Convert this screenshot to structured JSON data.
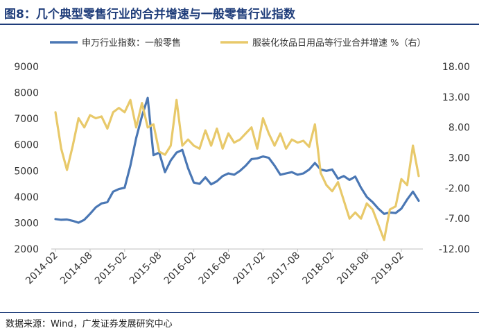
{
  "title": "图8：几个典型零售行业的合并增速与一般零售行业指数",
  "source": "数据来源：Wind，广发证券发展研究中心",
  "colors": {
    "title": "#1f3d7a",
    "series_blue": "#4a77b4",
    "series_yellow": "#e8c96a"
  },
  "chart_data": {
    "type": "line",
    "legend_position": "top",
    "grid": false,
    "x_ticks": [
      "2014-02",
      "2014-08",
      "2015-02",
      "2015-08",
      "2016-02",
      "2016-08",
      "2017-02",
      "2017-08",
      "2018-02",
      "2018-08",
      "2019-02"
    ],
    "x_range": [
      "2014-02",
      "2019-05"
    ],
    "y_left": {
      "min": 2000,
      "max": 9000,
      "ticks": [
        "2000",
        "3000",
        "4000",
        "5000",
        "6000",
        "7000",
        "8000",
        "9000"
      ]
    },
    "y_right": {
      "min": -12,
      "max": 18,
      "ticks": [
        "-12.00",
        "-7.00",
        "-2.00",
        "3.00",
        "8.00",
        "13.00",
        "18.00"
      ]
    },
    "series": [
      {
        "name": "申万行业指数：一般零售",
        "axis": "left",
        "color": "#4a77b4",
        "x": [
          "2014-02",
          "2014-03",
          "2014-04",
          "2014-05",
          "2014-06",
          "2014-07",
          "2014-08",
          "2014-09",
          "2014-10",
          "2014-11",
          "2014-12",
          "2015-01",
          "2015-02",
          "2015-03",
          "2015-04",
          "2015-05",
          "2015-06",
          "2015-07",
          "2015-08",
          "2015-09",
          "2015-10",
          "2015-11",
          "2015-12",
          "2016-01",
          "2016-02",
          "2016-03",
          "2016-04",
          "2016-05",
          "2016-06",
          "2016-07",
          "2016-08",
          "2016-09",
          "2016-10",
          "2016-11",
          "2016-12",
          "2017-01",
          "2017-02",
          "2017-03",
          "2017-04",
          "2017-05",
          "2017-06",
          "2017-07",
          "2017-08",
          "2017-09",
          "2017-10",
          "2017-11",
          "2017-12",
          "2018-01",
          "2018-02",
          "2018-03",
          "2018-04",
          "2018-05",
          "2018-06",
          "2018-07",
          "2018-08",
          "2018-09",
          "2018-10",
          "2018-11",
          "2018-12",
          "2019-01",
          "2019-02",
          "2019-03",
          "2019-04",
          "2019-05"
        ],
        "values": [
          3150,
          3120,
          3130,
          3080,
          3010,
          3120,
          3350,
          3600,
          3750,
          3800,
          4200,
          4300,
          4350,
          5200,
          6250,
          7100,
          7800,
          5600,
          5700,
          4950,
          5400,
          5700,
          5800,
          5100,
          4550,
          4500,
          4750,
          4480,
          4600,
          4800,
          4900,
          4850,
          5000,
          5200,
          5450,
          5480,
          5550,
          5500,
          5200,
          4850,
          4900,
          4950,
          4850,
          4900,
          5050,
          5300,
          5050,
          5000,
          5050,
          4700,
          4800,
          4650,
          4780,
          4350,
          4000,
          3800,
          3550,
          3350,
          3400,
          3380,
          3550,
          3900,
          4200,
          3850
        ]
      },
      {
        "name": "服装化妆品日用品等行业合并增速 %（右）",
        "axis": "right",
        "color": "#e8c96a",
        "x": [
          "2014-02",
          "2014-03",
          "2014-04",
          "2014-05",
          "2014-06",
          "2014-07",
          "2014-08",
          "2014-09",
          "2014-10",
          "2014-11",
          "2014-12",
          "2015-01",
          "2015-02",
          "2015-03",
          "2015-04",
          "2015-05",
          "2015-06",
          "2015-07",
          "2015-08",
          "2015-09",
          "2015-10",
          "2015-11",
          "2015-12",
          "2016-01",
          "2016-02",
          "2016-03",
          "2016-04",
          "2016-05",
          "2016-06",
          "2016-07",
          "2016-08",
          "2016-09",
          "2016-10",
          "2016-11",
          "2016-12",
          "2017-01",
          "2017-02",
          "2017-03",
          "2017-04",
          "2017-05",
          "2017-06",
          "2017-07",
          "2017-08",
          "2017-09",
          "2017-10",
          "2017-11",
          "2017-12",
          "2018-01",
          "2018-02",
          "2018-03",
          "2018-04",
          "2018-05",
          "2018-06",
          "2018-07",
          "2018-08",
          "2018-09",
          "2018-10",
          "2018-11",
          "2018-12",
          "2019-01",
          "2019-02",
          "2019-03",
          "2019-04",
          "2019-05"
        ],
        "values": [
          10.5,
          4.5,
          1.0,
          5.0,
          9.5,
          8.0,
          10.0,
          9.5,
          9.8,
          7.8,
          10.5,
          11.2,
          10.5,
          12.5,
          8.0,
          12.0,
          8.0,
          8.5,
          4.0,
          3.5,
          5.0,
          12.5,
          5.0,
          6.0,
          5.0,
          4.5,
          7.5,
          5.0,
          7.8,
          4.5,
          7.0,
          5.5,
          6.0,
          7.0,
          8.0,
          4.5,
          9.5,
          7.0,
          5.0,
          7.0,
          4.5,
          6.0,
          5.5,
          5.8,
          4.8,
          8.5,
          0.5,
          -1.5,
          -2.5,
          -1.0,
          -4.0,
          -7.0,
          -6.0,
          -7.0,
          -4.5,
          -5.5,
          -8.0,
          -10.5,
          -5.5,
          -5.0,
          -0.5,
          -1.5,
          5.0,
          0.0
        ]
      }
    ]
  }
}
